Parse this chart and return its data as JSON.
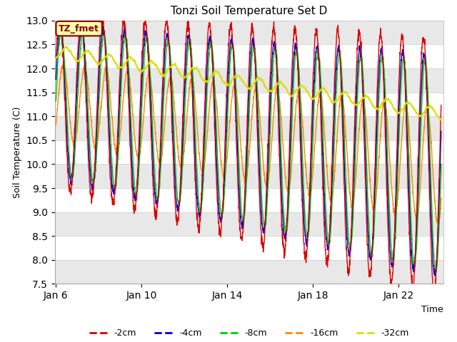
{
  "title": "Tonzi Soil Temperature Set D",
  "xlabel": "Time",
  "ylabel": "Soil Temperature (C)",
  "ylim": [
    7.5,
    13.0
  ],
  "yticks": [
    7.5,
    8.0,
    8.5,
    9.0,
    9.5,
    10.0,
    10.5,
    11.0,
    11.5,
    12.0,
    12.5,
    13.0
  ],
  "date_start": 6,
  "date_end": 24,
  "xtick_positions": [
    6,
    10,
    14,
    18,
    22
  ],
  "xtick_labels": [
    "Jan 6",
    "Jan 10",
    "Jan 14",
    "Jan 18",
    "Jan 22"
  ],
  "series_colors": [
    "#dd0000",
    "#0000cc",
    "#00cc00",
    "#ff8800",
    "#dddd00"
  ],
  "series_labels": [
    "-2cm",
    "-4cm",
    "-8cm",
    "-16cm",
    "-32cm"
  ],
  "annotation_text": "TZ_fmet",
  "annotation_bgcolor": "#ffffaa",
  "annotation_edgecolor": "#880000",
  "background_color": "#ffffff",
  "band_color": "#e8e8e8",
  "band_edges": [
    7.5,
    8.0,
    8.5,
    9.0,
    9.5,
    10.0,
    10.5,
    11.0,
    11.5,
    12.0,
    12.5,
    13.0
  ]
}
